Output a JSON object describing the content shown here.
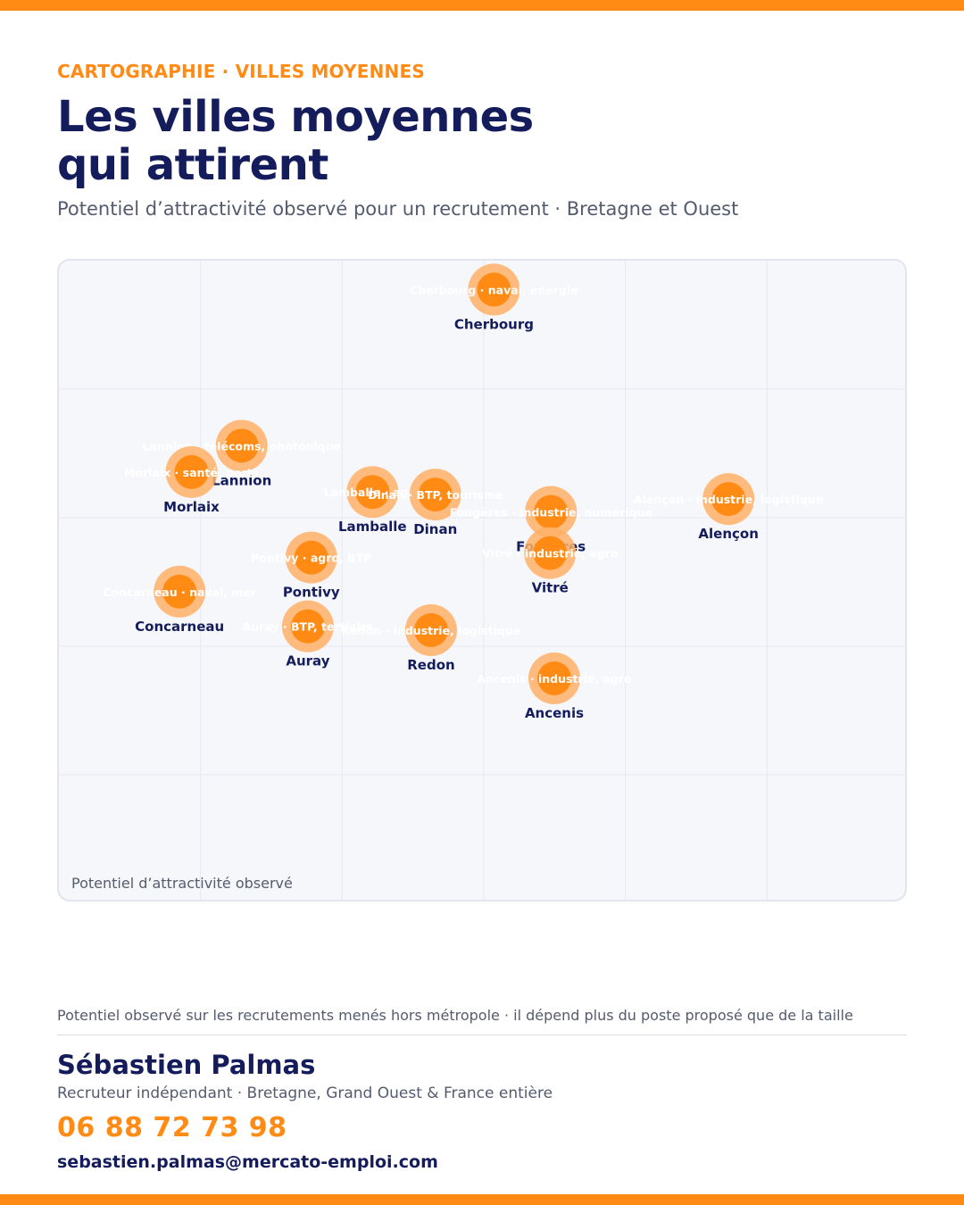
{
  "header": {
    "eyebrow": "CARTOGRAPHIE · VILLES MOYENNES",
    "title_line1": "Les villes moyennes",
    "title_line2": "qui attirent",
    "subtitle": "Potentiel d’attractivité observé pour un recrutement · Bretagne et Ouest"
  },
  "colors": {
    "accent": "#ff8a14",
    "halo": "#ffb066",
    "navy": "#141c5c",
    "muted": "#555b6e"
  },
  "chart_data": {
    "type": "scatter",
    "title": "",
    "xlabel": "",
    "ylabel": "",
    "axis_caption": "Potentiel d’attractivité observé",
    "grid": true,
    "points": [
      {
        "name": "Cherbourg",
        "tag": "Cherbourg · naval, énergie",
        "x": 0.512,
        "y": 0.955
      },
      {
        "name": "Lannion",
        "tag": "Lannion · télécoms, photonique",
        "x": 0.215,
        "y": 0.712
      },
      {
        "name": "Morlaix",
        "tag": "Morlaix · santé, ports",
        "x": 0.156,
        "y": 0.671
      },
      {
        "name": "Lamballe",
        "tag": "Lamballe · agro",
        "x": 0.369,
        "y": 0.64
      },
      {
        "name": "Dinan",
        "tag": "Dinan · BTP, tourisme",
        "x": 0.443,
        "y": 0.636
      },
      {
        "name": "Fougères",
        "tag": "Fougères · industrie, numérique",
        "x": 0.579,
        "y": 0.609
      },
      {
        "name": "Alençon",
        "tag": "Alençon · industrie, logistique",
        "x": 0.788,
        "y": 0.629
      },
      {
        "name": "Vitré",
        "tag": "Vitré · industrie, agro",
        "x": 0.578,
        "y": 0.545
      },
      {
        "name": "Pontivy",
        "tag": "Pontivy · agro, BTP",
        "x": 0.297,
        "y": 0.538
      },
      {
        "name": "Concarneau",
        "tag": "Concarneau · naval, mer",
        "x": 0.142,
        "y": 0.485
      },
      {
        "name": "Auray",
        "tag": "Auray · BTP, tertiaire",
        "x": 0.293,
        "y": 0.431
      },
      {
        "name": "Redon",
        "tag": "Redon · industrie, logistique",
        "x": 0.438,
        "y": 0.425
      },
      {
        "name": "Ancenis",
        "tag": "Ancenis · industrie, agro",
        "x": 0.583,
        "y": 0.35
      }
    ]
  },
  "footer": {
    "note": "Potentiel observé sur les recrutements menés hors métropole · il dépend plus du poste proposé que de la taille",
    "author": "Sébastien Palmas",
    "role": "Recruteur indépendant · Bretagne, Grand Ouest & France entière",
    "phone": "06 88 72 73 98",
    "email": "sebastien.palmas@mercato-emploi.com"
  }
}
